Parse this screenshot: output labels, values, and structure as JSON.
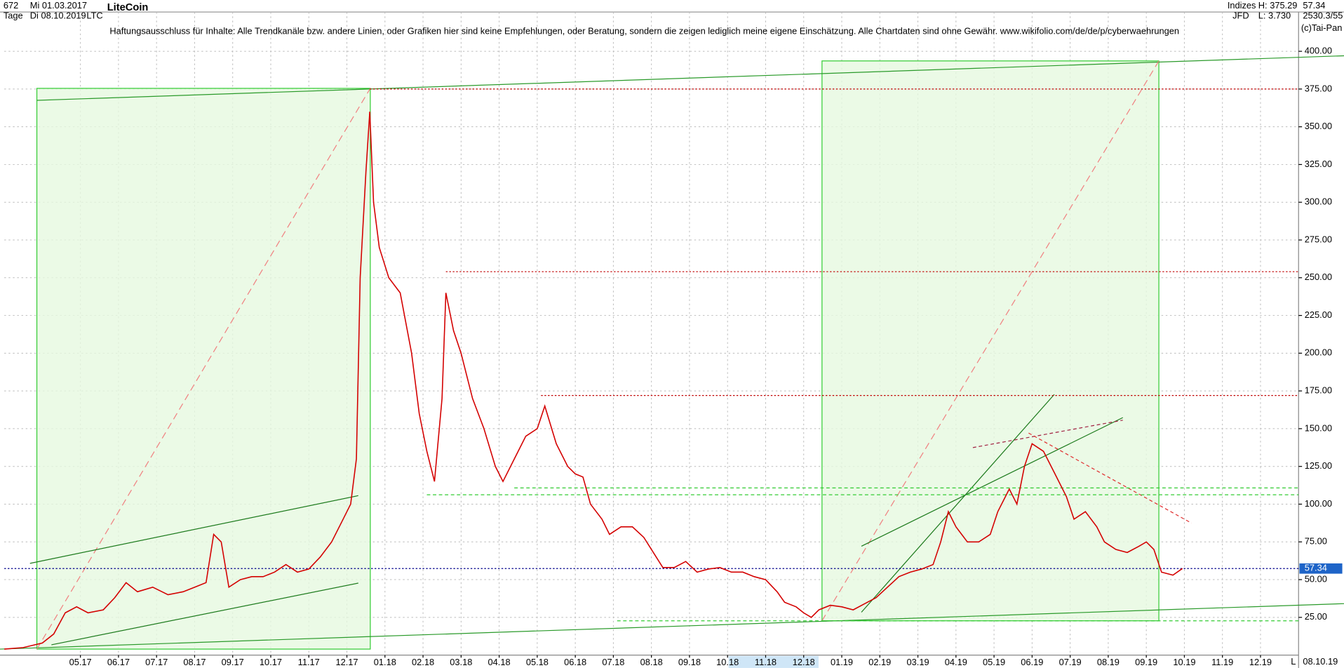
{
  "header": {
    "bars": "672",
    "interval": "Tage",
    "start_date": "Mi 01.03.2017",
    "end_date": "Di 08.10.2019",
    "symbol": "LTC",
    "name": "LiteCoin",
    "disclaimer": "Haftungsausschluss für Inhalte: Alle Trendkanäle bzw. andere Linien, oder Grafiken hier sind keine Empfehlungen, oder Beratung, sondern die zeigen lediglich meine eigene Einschätzung. Alle Chartdaten sind ohne Gewähr.  www.wikifolio.com/de/de/p/cyberwaehrungen",
    "index_label": "Indizes",
    "source": "JFD",
    "high": "H: 375.29",
    "low": "L: 3.730",
    "last": "57.34",
    "counter": "2530.3/55",
    "copyright": "(c)Tai-Pan",
    "bottom_date": "08.10.19",
    "scale_mode": "L"
  },
  "chart_data": {
    "type": "line",
    "title": "LiteCoin",
    "series": [
      {
        "name": "LTC",
        "color": "#d40000",
        "x": [
          0,
          0.5,
          1.0,
          1.3,
          1.6,
          1.9,
          2.2,
          2.6,
          2.9,
          3.2,
          3.5,
          3.9,
          4.3,
          4.7,
          5.0,
          5.3,
          5.5,
          5.7,
          5.9,
          6.2,
          6.5,
          6.8,
          7.1,
          7.4,
          7.7,
          8.0,
          8.3,
          8.6,
          8.9,
          9.1,
          9.25,
          9.35,
          9.5,
          9.6,
          9.7,
          9.85,
          10.1,
          10.4,
          10.7,
          10.9,
          11.1,
          11.3,
          11.5,
          11.6,
          11.8,
          12.0,
          12.3,
          12.6,
          12.9,
          13.1,
          13.4,
          13.7,
          14.0,
          14.2,
          14.5,
          14.8,
          15.0,
          15.2,
          15.4,
          15.7,
          15.9,
          16.2,
          16.5,
          16.8,
          17.0,
          17.3,
          17.6,
          17.9,
          18.2,
          18.5,
          18.8,
          19.1,
          19.4,
          19.7,
          20.0,
          20.3,
          20.5,
          20.8,
          21.0,
          21.2,
          21.4,
          21.7,
          22.0,
          22.3,
          22.6,
          22.9,
          23.2,
          23.5,
          23.8,
          24.1,
          24.4,
          24.6,
          24.8,
          25.0,
          25.3,
          25.6,
          25.9,
          26.1,
          26.4,
          26.6,
          26.8,
          27.0,
          27.3,
          27.6,
          27.9,
          28.1,
          28.4,
          28.7,
          28.9,
          29.2,
          29.5,
          29.8,
          30.0,
          30.2,
          30.4,
          30.7,
          30.95
        ],
        "values": [
          4,
          5,
          8,
          14,
          28,
          32,
          28,
          30,
          38,
          48,
          42,
          45,
          40,
          42,
          45,
          48,
          80,
          75,
          45,
          50,
          52,
          52,
          55,
          60,
          55,
          57,
          65,
          75,
          90,
          100,
          130,
          250,
          320,
          360,
          300,
          270,
          250,
          240,
          200,
          160,
          135,
          115,
          170,
          240,
          215,
          200,
          170,
          150,
          125,
          115,
          130,
          145,
          150,
          165,
          140,
          125,
          120,
          118,
          100,
          90,
          80,
          85,
          85,
          78,
          70,
          58,
          58,
          62,
          55,
          57,
          58,
          55,
          55,
          52,
          50,
          42,
          35,
          32,
          28,
          25,
          30,
          33,
          32,
          30,
          34,
          38,
          45,
          52,
          55,
          57,
          60,
          75,
          95,
          85,
          75,
          75,
          80,
          95,
          110,
          100,
          125,
          140,
          135,
          120,
          105,
          90,
          95,
          85,
          75,
          70,
          68,
          72,
          75,
          70,
          55,
          53,
          57.34
        ]
      }
    ],
    "levels": [
      {
        "value": 375,
        "start": 9.6,
        "color": "#c00000"
      },
      {
        "value": 254,
        "start": 11.6,
        "color": "#c00000"
      },
      {
        "value": 172,
        "start": 14.1,
        "color": "#c00000"
      },
      {
        "value": 57.34,
        "start": 0,
        "color": "#00008b"
      }
    ],
    "xlim": [
      0,
      34
    ],
    "ylim": [
      0,
      426
    ],
    "xticks": [
      {
        "value": 2,
        "label": "05.17"
      },
      {
        "value": 3,
        "label": "06.17"
      },
      {
        "value": 4,
        "label": "07.17"
      },
      {
        "value": 5,
        "label": "08.17"
      },
      {
        "value": 6,
        "label": "09.17"
      },
      {
        "value": 7,
        "label": "10.17"
      },
      {
        "value": 8,
        "label": "11.17"
      },
      {
        "value": 9,
        "label": "12.17"
      },
      {
        "value": 10,
        "label": "01.18"
      },
      {
        "value": 11,
        "label": "02.18"
      },
      {
        "value": 12,
        "label": "03.18"
      },
      {
        "value": 13,
        "label": "04.18"
      },
      {
        "value": 14,
        "label": "05.18"
      },
      {
        "value": 15,
        "label": "06.18"
      },
      {
        "value": 16,
        "label": "07.18"
      },
      {
        "value": 17,
        "label": "08.18"
      },
      {
        "value": 18,
        "label": "09.18"
      },
      {
        "value": 19,
        "label": "10.18"
      },
      {
        "value": 20,
        "label": "11.18"
      },
      {
        "value": 21,
        "label": "12.18"
      },
      {
        "value": 22,
        "label": "01.19"
      },
      {
        "value": 23,
        "label": "02.19"
      },
      {
        "value": 24,
        "label": "03.19"
      },
      {
        "value": 25,
        "label": "04.19"
      },
      {
        "value": 26,
        "label": "05.19"
      },
      {
        "value": 27,
        "label": "06.19"
      },
      {
        "value": 28,
        "label": "07.19"
      },
      {
        "value": 29,
        "label": "08.19"
      },
      {
        "value": 30,
        "label": "09.19"
      },
      {
        "value": 31,
        "label": "10.19"
      },
      {
        "value": 32,
        "label": "11.19"
      },
      {
        "value": 33,
        "label": "12.19"
      }
    ],
    "yticks": [
      {
        "value": 25,
        "label": "25.00"
      },
      {
        "value": 50,
        "label": "50.00"
      },
      {
        "value": 75,
        "label": "75.00"
      },
      {
        "value": 100,
        "label": "100.00"
      },
      {
        "value": 125,
        "label": "125.00"
      },
      {
        "value": 150,
        "label": "150.00"
      },
      {
        "value": 175,
        "label": "175.00"
      },
      {
        "value": 200,
        "label": "200.00"
      },
      {
        "value": 225,
        "label": "225.00"
      },
      {
        "value": 250,
        "label": "250.00"
      },
      {
        "value": 275,
        "label": "275.00"
      },
      {
        "value": 300,
        "label": "300.00"
      },
      {
        "value": 325,
        "label": "325.00"
      },
      {
        "value": 350,
        "label": "350.00"
      },
      {
        "value": 375,
        "label": "375.00"
      },
      {
        "value": 400,
        "label": "400.00"
      }
    ],
    "grid": true
  }
}
